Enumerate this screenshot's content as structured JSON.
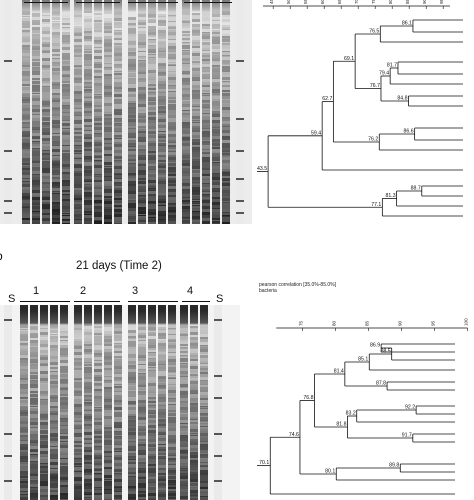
{
  "panel_b": {
    "letter": "b",
    "title": "21 days (Time 2)",
    "standard_label_left": "S",
    "standard_label_right": "S",
    "group_labels": [
      "1",
      "2",
      "3",
      "4"
    ]
  },
  "dendrogram_top": {
    "scale_ticks": [
      "45",
      "50",
      "55",
      "60",
      "65",
      "70",
      "75",
      "80",
      "85",
      "90",
      "95"
    ],
    "node_values": [
      "86.1",
      "76.5",
      "69.1",
      "81.7",
      "79.4",
      "76.7",
      "84.8",
      "62.7",
      "59.4",
      "86.6",
      "76.2",
      "43.5",
      "88.7",
      "81.3",
      "77.1"
    ]
  },
  "dendrogram_bottom": {
    "legend_line1": "pearson correlation [35.0%-85.0%]",
    "legend_line2": "bacteria",
    "scale_ticks": [
      "75",
      "80",
      "85",
      "90",
      "95",
      "100"
    ],
    "node_values": [
      "86.9",
      "88.5",
      "85.1",
      "81.4",
      "87.8",
      "76.8",
      "83.2",
      "92.2",
      "81.8",
      "74.6",
      "91.7",
      "70.1",
      "80.1",
      "89.8"
    ]
  }
}
